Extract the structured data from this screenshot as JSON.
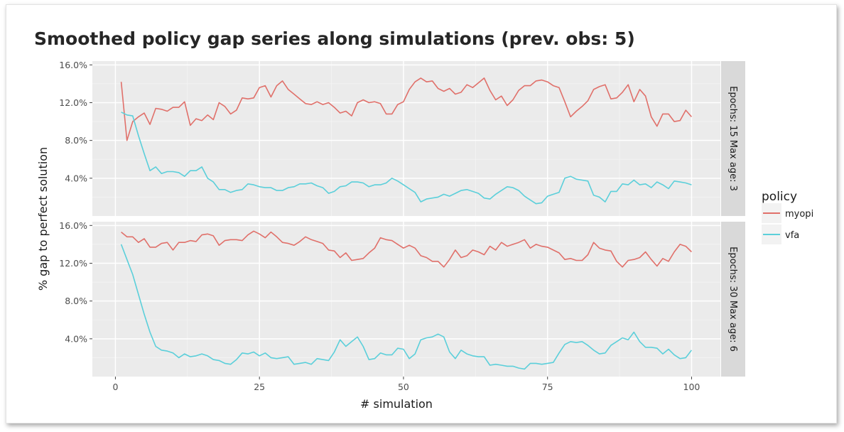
{
  "chart_data": {
    "type": "line",
    "title": "Smoothed policy gap series along simulations (prev. obs: 5)",
    "xlabel": "# simulation",
    "ylabel": "% gap to perfect solution",
    "xlim": [
      -4,
      105
    ],
    "x_ticks": [
      0,
      25,
      50,
      75,
      100
    ],
    "y_ticks": [
      4,
      8,
      12,
      16
    ],
    "y_tick_labels": [
      "4.0%",
      "8.0%",
      "12.0%",
      "16.0%"
    ],
    "grid": true,
    "legend": {
      "title": "policy",
      "position": "right",
      "entries": [
        {
          "label": "myopi",
          "color": "#E0706A"
        },
        {
          "label": "vfa",
          "color": "#5BCFDA"
        }
      ]
    },
    "colors": {
      "myopi": "#E0706A",
      "vfa": "#5BCFDA",
      "panel_bg": "#EBEBEB",
      "strip_bg": "#D9D9D9"
    },
    "panels": [
      {
        "strip": "Epochs: 15 Max age: 3",
        "ylim": [
          0,
          16.4
        ],
        "series": [
          {
            "name": "myopi",
            "values": [
              14.2,
              8.0,
              10.0,
              10.5,
              10.9,
              9.7,
              11.4,
              11.3,
              11.1,
              11.5,
              11.5,
              12.1,
              9.6,
              10.3,
              10.1,
              10.7,
              10.2,
              12.0,
              11.6,
              10.8,
              11.2,
              12.5,
              12.4,
              12.5,
              13.6,
              13.8,
              12.6,
              13.8,
              14.3,
              13.4,
              12.9,
              12.4,
              11.9,
              11.8,
              12.1,
              11.8,
              12.0,
              11.5,
              10.9,
              11.1,
              10.6,
              12.0,
              12.3,
              12.0,
              12.1,
              11.9,
              10.8,
              10.8,
              11.8,
              12.1,
              13.4,
              14.2,
              14.6,
              14.2,
              14.3,
              13.5,
              13.2,
              13.5,
              12.9,
              13.1,
              13.9,
              13.6,
              14.1,
              14.6,
              13.3,
              12.3,
              12.7,
              11.7,
              12.3,
              13.3,
              13.8,
              13.8,
              14.3,
              14.4,
              14.2,
              13.8,
              13.6,
              12.1,
              10.5,
              11.1,
              11.6,
              12.2,
              13.4,
              13.7,
              13.9,
              12.4,
              12.5,
              13.1,
              13.9,
              12.1,
              13.4,
              12.7,
              10.5,
              9.5,
              10.8,
              10.8,
              10.0,
              10.1,
              11.2,
              10.5
            ]
          },
          {
            "name": "vfa",
            "values": [
              11.0,
              10.7,
              10.6,
              8.5,
              6.6,
              4.8,
              5.2,
              4.5,
              4.7,
              4.7,
              4.6,
              4.2,
              4.8,
              4.8,
              5.2,
              4.0,
              3.6,
              2.8,
              2.8,
              2.5,
              2.7,
              2.8,
              3.4,
              3.3,
              3.1,
              3.0,
              3.0,
              2.7,
              2.7,
              3.0,
              3.1,
              3.4,
              3.4,
              3.5,
              3.2,
              3.0,
              2.4,
              2.6,
              3.1,
              3.2,
              3.6,
              3.6,
              3.5,
              3.1,
              3.3,
              3.3,
              3.5,
              4.0,
              3.7,
              3.3,
              2.9,
              2.5,
              1.5,
              1.8,
              1.9,
              2.0,
              2.3,
              2.1,
              2.4,
              2.7,
              2.8,
              2.6,
              2.4,
              1.9,
              1.8,
              2.3,
              2.7,
              3.1,
              3.0,
              2.7,
              2.1,
              1.7,
              1.3,
              1.4,
              2.1,
              2.3,
              2.5,
              4.0,
              4.2,
              3.9,
              3.8,
              3.7,
              2.2,
              2.0,
              1.5,
              2.6,
              2.6,
              3.4,
              3.3,
              3.8,
              3.3,
              3.4,
              3.0,
              3.6,
              3.3,
              2.9,
              3.7,
              3.6,
              3.5,
              3.3
            ]
          }
        ]
      },
      {
        "strip": "Epochs: 30 Max age: 6",
        "ylim": [
          0,
          16.4
        ],
        "series": [
          {
            "name": "myopi",
            "values": [
              15.3,
              14.8,
              14.8,
              14.2,
              14.6,
              13.7,
              13.7,
              14.1,
              14.2,
              13.4,
              14.2,
              14.2,
              14.4,
              14.3,
              15.0,
              15.1,
              14.9,
              13.9,
              14.4,
              14.5,
              14.5,
              14.4,
              15.0,
              15.4,
              15.1,
              14.7,
              15.3,
              14.8,
              14.2,
              14.1,
              13.9,
              14.3,
              14.8,
              14.5,
              14.3,
              14.1,
              13.4,
              13.3,
              12.6,
              13.1,
              12.3,
              12.4,
              12.5,
              13.1,
              13.6,
              14.7,
              14.5,
              14.4,
              14.0,
              13.6,
              13.9,
              13.6,
              12.8,
              12.6,
              12.2,
              12.2,
              11.6,
              12.4,
              13.4,
              12.6,
              12.8,
              13.4,
              13.2,
              12.9,
              13.8,
              13.4,
              14.2,
              13.8,
              14.0,
              14.2,
              14.5,
              13.6,
              14.0,
              13.8,
              13.7,
              13.4,
              13.1,
              12.4,
              12.5,
              12.3,
              12.3,
              12.9,
              14.2,
              13.6,
              13.4,
              13.3,
              12.2,
              11.6,
              12.3,
              12.4,
              12.6,
              13.2,
              12.4,
              11.7,
              12.5,
              12.2,
              13.2,
              14.0,
              13.8,
              13.2
            ]
          },
          {
            "name": "vfa",
            "values": [
              14.0,
              12.4,
              10.8,
              8.7,
              6.6,
              4.7,
              3.2,
              2.8,
              2.7,
              2.5,
              2.0,
              2.4,
              2.1,
              2.2,
              2.4,
              2.2,
              1.8,
              1.7,
              1.4,
              1.3,
              1.8,
              2.5,
              2.4,
              2.6,
              2.2,
              2.5,
              2.0,
              1.9,
              2.0,
              2.1,
              1.3,
              1.4,
              1.5,
              1.3,
              1.9,
              1.8,
              1.7,
              2.6,
              3.9,
              3.2,
              3.7,
              4.2,
              3.2,
              1.8,
              1.9,
              2.5,
              2.3,
              2.3,
              3.0,
              2.9,
              1.9,
              2.4,
              3.9,
              4.1,
              4.2,
              4.5,
              4.2,
              2.6,
              1.9,
              2.8,
              2.4,
              2.2,
              2.1,
              2.1,
              1.2,
              1.3,
              1.2,
              1.1,
              1.1,
              0.9,
              0.8,
              1.4,
              1.4,
              1.3,
              1.4,
              1.5,
              2.5,
              3.4,
              3.7,
              3.6,
              3.7,
              3.3,
              2.8,
              2.4,
              2.5,
              3.3,
              3.7,
              4.1,
              3.9,
              4.7,
              3.7,
              3.1,
              3.1,
              3.0,
              2.4,
              2.9,
              2.3,
              1.9,
              2.0,
              2.8
            ]
          }
        ]
      }
    ]
  }
}
